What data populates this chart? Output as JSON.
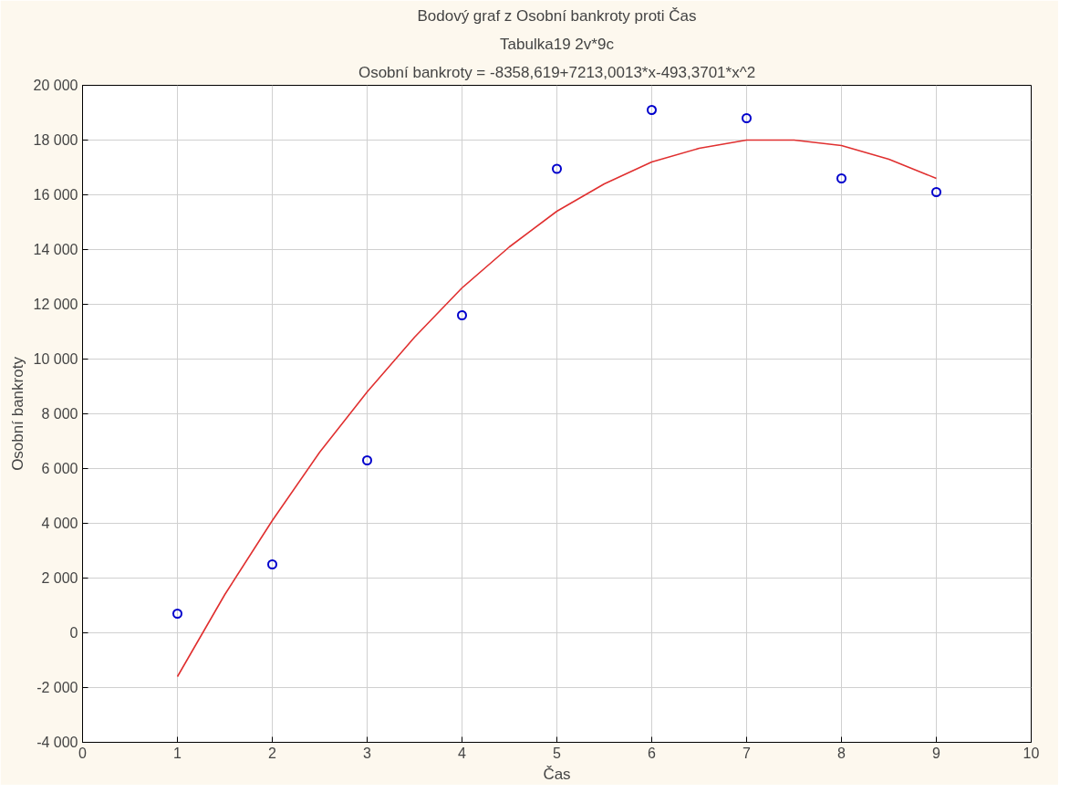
{
  "chart_data": {
    "type": "scatter",
    "title": "Bodový graf z Osobní bankroty proti Čas",
    "subtitle": "Tabulka19 2v*9c",
    "annotations": [
      "Osobní bankroty = -8358,619+7213,0013*x-493,3701*x^2"
    ],
    "xlabel": "Čas",
    "ylabel": "Osobní bankroty",
    "xlim": [
      0,
      10
    ],
    "xticks": [
      0,
      1,
      2,
      3,
      4,
      5,
      6,
      7,
      8,
      9,
      10
    ],
    "ylim": [
      -4000,
      20000
    ],
    "yticks": [
      {
        "value": -4000,
        "label": "-4 000"
      },
      {
        "value": -2000,
        "label": "-2 000"
      },
      0,
      {
        "value": 2000,
        "label": "2 000"
      },
      {
        "value": 4000,
        "label": "4 000"
      },
      {
        "value": 6000,
        "label": "6 000"
      },
      {
        "value": 8000,
        "label": "8 000"
      },
      {
        "value": 10000,
        "label": "10 000"
      },
      {
        "value": 12000,
        "label": "12 000"
      },
      {
        "value": 14000,
        "label": "14 000"
      },
      {
        "value": 16000,
        "label": "16 000"
      },
      {
        "value": 18000,
        "label": "18 000"
      },
      {
        "value": 20000,
        "label": "20 000"
      }
    ],
    "grid": true,
    "series": [
      {
        "marker": "circle",
        "color": "#0000cc",
        "x": [
          1,
          2,
          3,
          4,
          5,
          6,
          7,
          8,
          9
        ],
        "values": [
          700,
          2500,
          6300,
          11600,
          16950,
          19100,
          18800,
          16600,
          16100
        ]
      },
      {
        "type": "line",
        "color": "#e03030",
        "x": [
          1,
          1.5,
          2,
          2.5,
          3,
          3.5,
          4,
          4.5,
          5,
          5.5,
          6,
          6.5,
          7,
          7.5,
          8,
          8.5,
          9
        ],
        "values": [
          -1600,
          1400,
          4100,
          6600,
          8800,
          10800,
          12600,
          14100,
          15400,
          16400,
          17200,
          17700,
          18000,
          18000,
          17800,
          17300,
          16600
        ]
      }
    ]
  }
}
